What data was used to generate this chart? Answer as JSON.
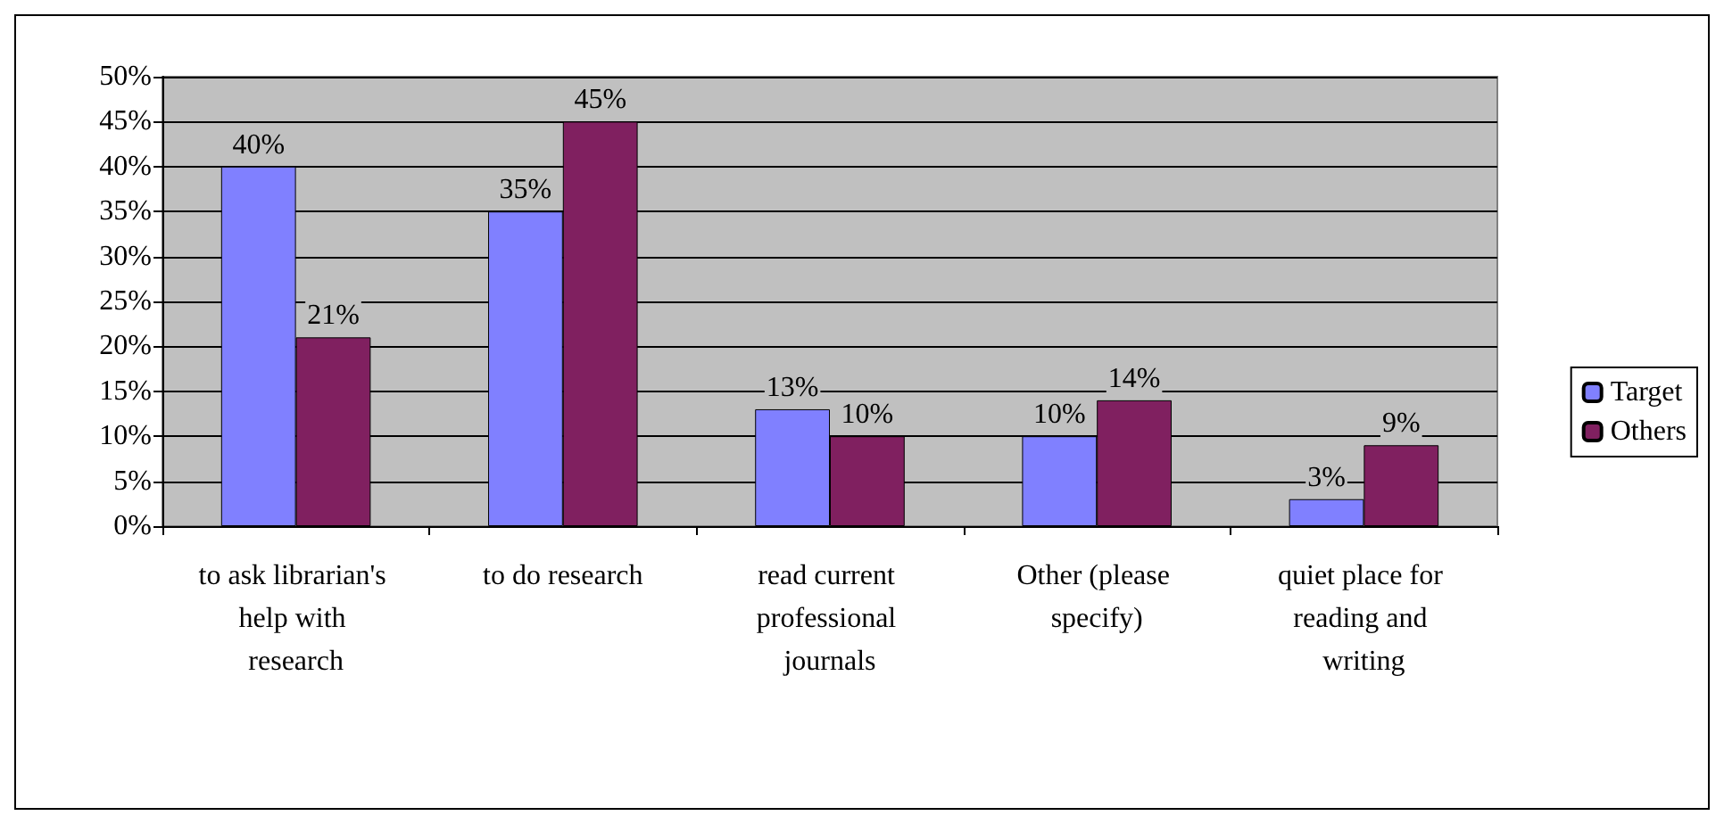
{
  "chart_data": {
    "type": "bar",
    "categories": [
      "to ask librarian's help with research",
      "to do research",
      "read current professional journals",
      "Other (please specify)",
      "quiet place for reading and writing"
    ],
    "series": [
      {
        "name": "Target",
        "color": "#8080ff",
        "values": [
          40,
          35,
          13,
          10,
          3
        ],
        "value_labels": [
          "40%",
          "35%",
          "13%",
          "10%",
          "3%"
        ]
      },
      {
        "name": "Others",
        "color": "#802060",
        "values": [
          21,
          45,
          10,
          14,
          9
        ],
        "value_labels": [
          "21%",
          "45%",
          "10%",
          "14%",
          "9%"
        ]
      }
    ],
    "ylim": [
      0,
      50
    ],
    "yticks": [
      {
        "value": 0,
        "label": "0%"
      },
      {
        "value": 5,
        "label": "5%"
      },
      {
        "value": 10,
        "label": "10%"
      },
      {
        "value": 15,
        "label": "15%"
      },
      {
        "value": 20,
        "label": "20%"
      },
      {
        "value": 25,
        "label": "25%"
      },
      {
        "value": 30,
        "label": "30%"
      },
      {
        "value": 35,
        "label": "35%"
      },
      {
        "value": 40,
        "label": "40%"
      },
      {
        "value": 45,
        "label": "45%"
      },
      {
        "value": 50,
        "label": "50%"
      }
    ],
    "grid": "y",
    "legend": "right"
  }
}
